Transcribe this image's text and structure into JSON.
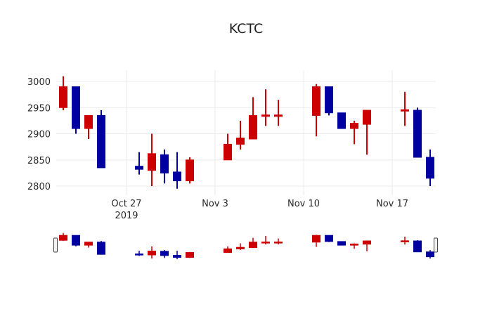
{
  "chart_data": {
    "type": "candlestick",
    "title": "KCTC",
    "xlabel": "",
    "ylabel": "",
    "ylim": [
      2790,
      3020
    ],
    "yticks": [
      2800,
      2850,
      2900,
      2950,
      3000
    ],
    "xticks": [
      {
        "date": "2019-10-27",
        "label": "Oct 27",
        "sublabel": "2019"
      },
      {
        "date": "2019-11-03",
        "label": "Nov 3",
        "sublabel": ""
      },
      {
        "date": "2019-11-10",
        "label": "Nov 10",
        "sublabel": ""
      },
      {
        "date": "2019-11-17",
        "label": "Nov 17",
        "sublabel": ""
      }
    ],
    "grid": true,
    "rangeslider": true,
    "increasing_color": "#cc0000",
    "decreasing_color": "#0000a0",
    "candles": [
      {
        "date": "2019-10-22",
        "open": 2950,
        "high": 3010,
        "low": 2945,
        "close": 2990
      },
      {
        "date": "2019-10-23",
        "open": 2990,
        "high": 2990,
        "low": 2900,
        "close": 2910
      },
      {
        "date": "2019-10-24",
        "open": 2910,
        "high": 2935,
        "low": 2890,
        "close": 2935
      },
      {
        "date": "2019-10-25",
        "open": 2935,
        "high": 2945,
        "low": 2835,
        "close": 2835
      },
      {
        "date": "2019-10-28",
        "open": 2838,
        "high": 2865,
        "low": 2822,
        "close": 2832
      },
      {
        "date": "2019-10-29",
        "open": 2830,
        "high": 2900,
        "low": 2800,
        "close": 2862
      },
      {
        "date": "2019-10-30",
        "open": 2860,
        "high": 2870,
        "low": 2805,
        "close": 2825
      },
      {
        "date": "2019-10-31",
        "open": 2827,
        "high": 2865,
        "low": 2795,
        "close": 2810
      },
      {
        "date": "2019-11-01",
        "open": 2810,
        "high": 2855,
        "low": 2805,
        "close": 2850
      },
      {
        "date": "2019-11-04",
        "open": 2850,
        "high": 2900,
        "low": 2850,
        "close": 2880
      },
      {
        "date": "2019-11-05",
        "open": 2880,
        "high": 2925,
        "low": 2870,
        "close": 2892
      },
      {
        "date": "2019-11-06",
        "open": 2890,
        "high": 2970,
        "low": 2890,
        "close": 2935
      },
      {
        "date": "2019-11-07",
        "open": 2935,
        "high": 2985,
        "low": 2915,
        "close": 2936
      },
      {
        "date": "2019-11-08",
        "open": 2935,
        "high": 2965,
        "low": 2915,
        "close": 2936
      },
      {
        "date": "2019-11-11",
        "open": 2935,
        "high": 2995,
        "low": 2895,
        "close": 2990
      },
      {
        "date": "2019-11-12",
        "open": 2990,
        "high": 2990,
        "low": 2935,
        "close": 2940
      },
      {
        "date": "2019-11-13",
        "open": 2940,
        "high": 2940,
        "low": 2910,
        "close": 2910
      },
      {
        "date": "2019-11-14",
        "open": 2910,
        "high": 2925,
        "low": 2880,
        "close": 2920
      },
      {
        "date": "2019-11-15",
        "open": 2918,
        "high": 2945,
        "low": 2860,
        "close": 2945
      },
      {
        "date": "2019-11-18",
        "open": 2945,
        "high": 2980,
        "low": 2915,
        "close": 2946
      },
      {
        "date": "2019-11-19",
        "open": 2945,
        "high": 2950,
        "low": 2855,
        "close": 2855
      },
      {
        "date": "2019-11-20",
        "open": 2855,
        "high": 2870,
        "low": 2800,
        "close": 2815
      }
    ]
  }
}
